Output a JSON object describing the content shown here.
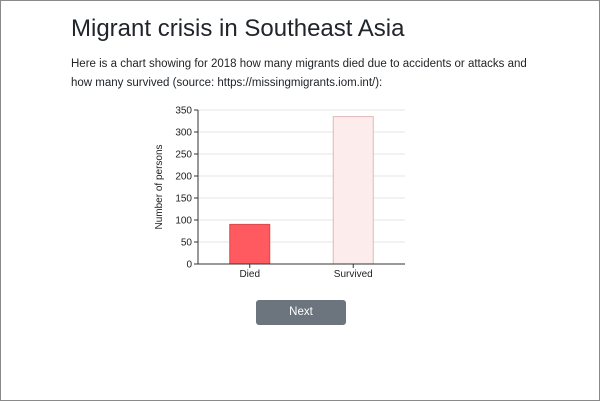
{
  "page": {
    "title": "Migrant crisis in Southeast Asia",
    "intro": "Here is a chart showing for 2018 how many migrants died due to accidents or attacks and how many survived (source: https://missingmigrants.iom.int/):",
    "next_label": "Next"
  },
  "chart_data": {
    "type": "bar",
    "categories": [
      "Died",
      "Survived"
    ],
    "values": [
      90,
      335
    ],
    "title": "",
    "xlabel": "",
    "ylabel": "Number of persons",
    "ylim": [
      0,
      350
    ],
    "yticks": [
      0,
      50,
      100,
      150,
      200,
      250,
      300,
      350
    ],
    "grid": true,
    "legend": "none",
    "colors": {
      "Died": {
        "fill": "#ff5a5f",
        "stroke": "#d94a4f"
      },
      "Survived": {
        "fill": "#fdecec",
        "stroke": "#e0b8b8"
      }
    }
  }
}
